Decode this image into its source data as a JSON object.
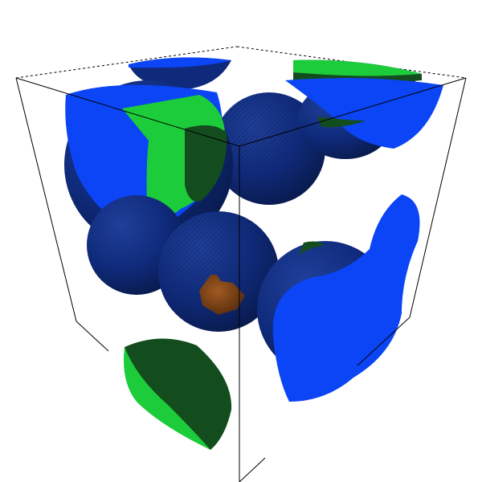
{
  "scene": {
    "background": "#ffffff",
    "colors": {
      "sphere_dark_blue": "#0f2a7a",
      "sphere_shadow": "#0a1c52",
      "cut_face_blue": "#0b45f5",
      "cut_face_green": "#1ccc3a",
      "dark_green": "#134d1e",
      "orange_core": "#8a4a1a",
      "cube_edge": "#000000"
    },
    "icons": {
      "cube_wireframe": "cube-outline-icon",
      "cut_sphere": "cut-sphere-icon"
    }
  }
}
